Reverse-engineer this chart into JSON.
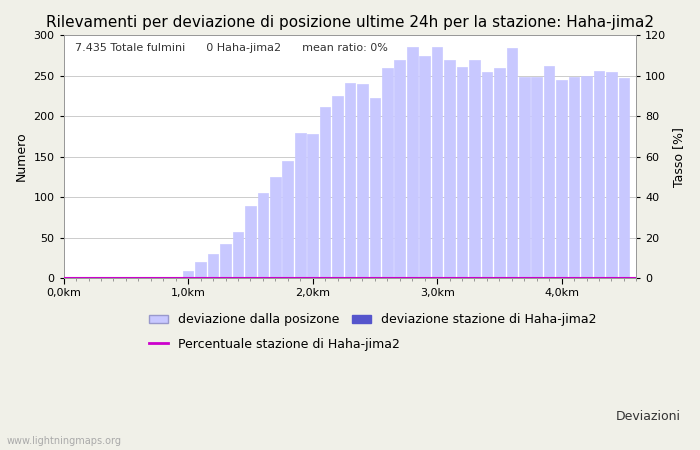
{
  "title": "Rilevamenti per deviazione di posizione ultime 24h per la stazione: Haha-jima2",
  "xlabel": "Deviazioni",
  "ylabel_left": "Numero",
  "ylabel_right": "Tasso [%]",
  "annotation": "7.435 Totale fulmini      0 Haha-jima2      mean ratio: 0%",
  "watermark": "www.lightningmaps.org",
  "bar_positions": [
    0.1,
    0.2,
    0.3,
    0.4,
    0.5,
    0.6,
    0.7,
    0.8,
    0.9,
    1.0,
    1.1,
    1.2,
    1.3,
    1.4,
    1.5,
    1.6,
    1.7,
    1.8,
    1.9,
    2.0,
    2.1,
    2.2,
    2.3,
    2.4,
    2.5,
    2.6,
    2.7,
    2.8,
    2.9,
    3.0,
    3.1,
    3.2,
    3.3,
    3.4,
    3.5,
    3.6,
    3.7,
    3.8,
    3.9,
    4.0,
    4.1,
    4.2,
    4.3,
    4.4,
    4.5
  ],
  "bar_heights_total": [
    0,
    0,
    0,
    0,
    0,
    0,
    0,
    0,
    0,
    9,
    20,
    29,
    42,
    57,
    89,
    105,
    125,
    145,
    179,
    178,
    212,
    225,
    241,
    240,
    222,
    260,
    270,
    285,
    275,
    285,
    270,
    261,
    270,
    255,
    260,
    284,
    248,
    249,
    262,
    245,
    248,
    250,
    256,
    255,
    247
  ],
  "bar_heights_station": [
    0,
    0,
    0,
    0,
    0,
    0,
    0,
    0,
    0,
    0,
    0,
    0,
    0,
    0,
    0,
    0,
    0,
    0,
    0,
    0,
    0,
    0,
    0,
    0,
    0,
    0,
    0,
    0,
    0,
    0,
    0,
    0,
    0,
    0,
    0,
    0,
    0,
    0,
    0,
    0,
    0,
    0,
    0,
    0,
    0
  ],
  "bar_color_total": "#c8c8ff",
  "bar_color_station": "#5555cc",
  "line_color": "#cc00cc",
  "bar_width": 0.085,
  "xlim": [
    0.0,
    4.6
  ],
  "ylim_left": [
    0,
    300
  ],
  "ylim_right": [
    0,
    120
  ],
  "xtick_positions": [
    0.0,
    1.0,
    2.0,
    3.0,
    4.0
  ],
  "xtick_labels": [
    "0,0km",
    "1,0km",
    "2,0km",
    "3,0km",
    "4,0km"
  ],
  "ytick_left": [
    0,
    50,
    100,
    150,
    200,
    250,
    300
  ],
  "ytick_right": [
    0,
    20,
    40,
    60,
    80,
    100,
    120
  ],
  "legend_label_total": "deviazione dalla posizone",
  "legend_label_station": "deviazione stazione di Haha-jima2",
  "legend_label_line": "Percentuale stazione di Haha-jima2",
  "bg_color": "#f0f0e8",
  "plot_bg_color": "#ffffff",
  "grid_color": "#cccccc",
  "title_fontsize": 11,
  "label_fontsize": 9,
  "tick_fontsize": 8,
  "annotation_fontsize": 8
}
